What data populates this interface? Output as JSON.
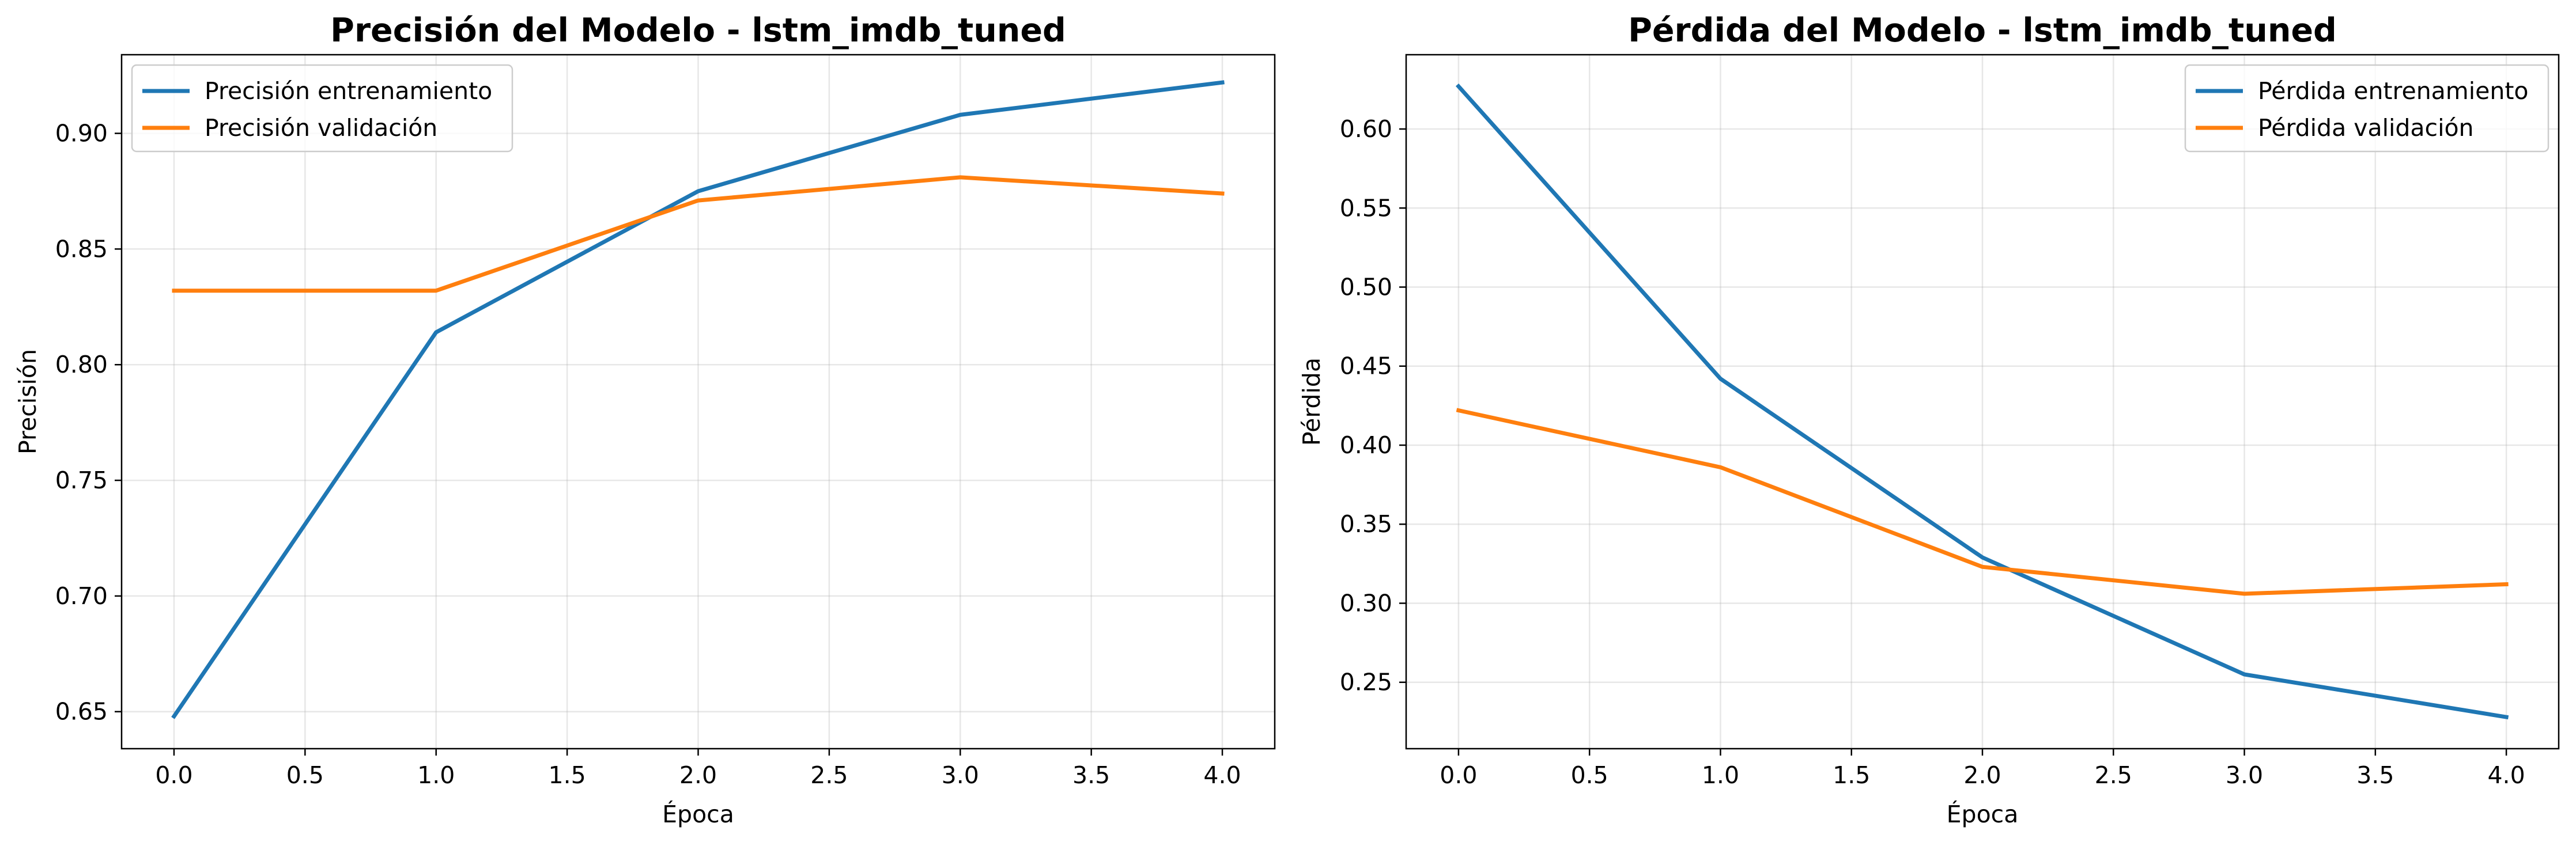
{
  "chart_data": [
    {
      "type": "line",
      "title": "Precisión del Modelo - lstm_imdb_tuned",
      "xlabel": "Época",
      "ylabel": "Precisión",
      "xlim": [
        -0.2,
        4.2
      ],
      "ylim": [
        0.634,
        0.934
      ],
      "xticks": [
        0.0,
        0.5,
        1.0,
        1.5,
        2.0,
        2.5,
        3.0,
        3.5,
        4.0
      ],
      "xtick_labels": [
        "0.0",
        "0.5",
        "1.0",
        "1.5",
        "2.0",
        "2.5",
        "3.0",
        "3.5",
        "4.0"
      ],
      "yticks": [
        0.65,
        0.7,
        0.75,
        0.8,
        0.85,
        0.9
      ],
      "ytick_labels": [
        "0.65",
        "0.70",
        "0.75",
        "0.80",
        "0.85",
        "0.90"
      ],
      "grid": true,
      "legend_position": "upper left",
      "x": [
        0,
        1,
        2,
        3,
        4
      ],
      "series": [
        {
          "name": "Precisión entrenamiento",
          "color": "#1f77b4",
          "values": [
            0.648,
            0.814,
            0.875,
            0.908,
            0.922
          ]
        },
        {
          "name": "Precisión validación",
          "color": "#ff7f0e",
          "values": [
            0.832,
            0.832,
            0.871,
            0.881,
            0.874
          ]
        }
      ]
    },
    {
      "type": "line",
      "title": "Pérdida del Modelo - lstm_imdb_tuned",
      "xlabel": "Época",
      "ylabel": "Pérdida",
      "xlim": [
        -0.2,
        4.2
      ],
      "ylim": [
        0.208,
        0.647
      ],
      "xticks": [
        0.0,
        0.5,
        1.0,
        1.5,
        2.0,
        2.5,
        3.0,
        3.5,
        4.0
      ],
      "xtick_labels": [
        "0.0",
        "0.5",
        "1.0",
        "1.5",
        "2.0",
        "2.5",
        "3.0",
        "3.5",
        "4.0"
      ],
      "yticks": [
        0.25,
        0.3,
        0.35,
        0.4,
        0.45,
        0.5,
        0.55,
        0.6
      ],
      "ytick_labels": [
        "0.25",
        "0.30",
        "0.35",
        "0.40",
        "0.45",
        "0.50",
        "0.55",
        "0.60"
      ],
      "grid": true,
      "legend_position": "upper right",
      "x": [
        0,
        1,
        2,
        3,
        4
      ],
      "series": [
        {
          "name": "Pérdida entrenamiento",
          "color": "#1f77b4",
          "values": [
            0.627,
            0.442,
            0.329,
            0.255,
            0.228
          ]
        },
        {
          "name": "Pérdida validación",
          "color": "#ff7f0e",
          "values": [
            0.422,
            0.386,
            0.323,
            0.306,
            0.312
          ]
        }
      ]
    }
  ]
}
